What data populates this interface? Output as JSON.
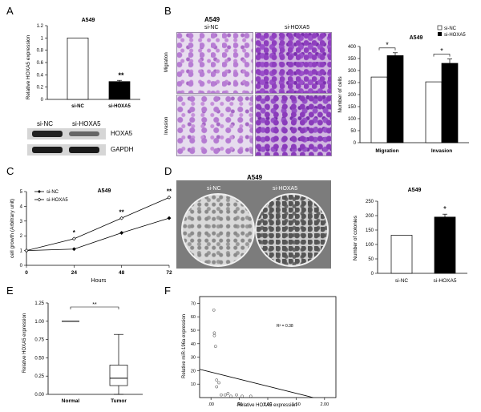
{
  "panels": {
    "A": {
      "letter": "A",
      "title": "A549",
      "ylabel": "Relative HOXA5 expression",
      "sig": "**",
      "western": {
        "lanes": [
          "si-NC",
          "si-HOXA5"
        ],
        "bands": [
          "HOXA5",
          "GAPDH"
        ]
      }
    },
    "B": {
      "letter": "B",
      "title": "A549",
      "columns": [
        "si-NC",
        "si-HOXA5"
      ],
      "rows": [
        "Migration",
        "Invasion"
      ],
      "chart_title": "A549",
      "ylabel": "Number of cells",
      "legend": [
        "si-NC",
        "si-HOXA5"
      ],
      "sig": [
        "*",
        "*"
      ]
    },
    "C": {
      "letter": "C",
      "title": "A549",
      "ylabel": "cell growth (Arbitrary unit)",
      "xlabel": "Hours",
      "legend": [
        "si-NC",
        "si-HOXA5"
      ],
      "sig": [
        "*",
        "**",
        "**"
      ]
    },
    "D": {
      "letter": "D",
      "title": "A549",
      "dishes": [
        "si-NC",
        "si-HOXA5"
      ],
      "chart_title": "A549",
      "ylabel": "Number of colonies",
      "sig": "*"
    },
    "E": {
      "letter": "E",
      "ylabel": "Relative HOXA5 expression",
      "sig": "**"
    },
    "F": {
      "letter": "F",
      "ylabel": "Relative miR-196a expression",
      "xlabel": "Relative HOXA5 expression",
      "r2": "R² = 0.38"
    }
  },
  "chart_data": [
    {
      "id": "A",
      "type": "bar",
      "categories": [
        "si-NC",
        "si-HOXA5"
      ],
      "values": [
        1.0,
        0.29
      ],
      "errors": [
        0,
        0.02
      ],
      "ylim": [
        0,
        1.2
      ],
      "yticks": [
        0,
        0.2,
        0.4,
        0.6,
        0.8,
        1.0,
        1.2
      ],
      "ytick_labels": [
        "0",
        "0.2",
        "0.4",
        "0.6",
        "0.8",
        "1",
        "1.2"
      ],
      "fills": [
        "#ffffff",
        "#000000"
      ]
    },
    {
      "id": "B",
      "type": "bar",
      "categories": [
        "Migration",
        "Invasion"
      ],
      "series": [
        {
          "name": "si-NC",
          "values": [
            273,
            253
          ],
          "errors": [
            0,
            0
          ],
          "fill": "#ffffff"
        },
        {
          "name": "si-HOXA5",
          "values": [
            362,
            330
          ],
          "errors": [
            12,
            18
          ],
          "fill": "#000000"
        }
      ],
      "ylim": [
        0,
        400
      ],
      "yticks": [
        0,
        50,
        100,
        150,
        200,
        250,
        300,
        350,
        400
      ],
      "legend_position": "top-right"
    },
    {
      "id": "C",
      "type": "line",
      "x": [
        0,
        24,
        48,
        72
      ],
      "xtick_labels": [
        "0",
        "24",
        "48",
        "72"
      ],
      "series": [
        {
          "name": "si-NC",
          "values": [
            1.0,
            1.1,
            2.2,
            3.2
          ],
          "errors": [
            0,
            0.1,
            0.05,
            0.08
          ]
        },
        {
          "name": "si-HOXA5",
          "values": [
            1.0,
            1.8,
            3.2,
            4.6
          ],
          "errors": [
            0,
            0.1,
            0.1,
            0.1
          ]
        }
      ],
      "ylim": [
        0,
        5
      ],
      "yticks": [
        0,
        1,
        2,
        3,
        4,
        5
      ],
      "legend_position": "top-left"
    },
    {
      "id": "D",
      "type": "bar",
      "categories": [
        "si-NC",
        "si-HOXA5"
      ],
      "values": [
        132,
        195
      ],
      "errors": [
        0,
        10
      ],
      "ylim": [
        0,
        250
      ],
      "yticks": [
        0,
        50,
        100,
        150,
        200,
        250
      ],
      "fills": [
        "#ffffff",
        "#000000"
      ]
    },
    {
      "id": "E",
      "type": "box",
      "categories": [
        "Normal",
        "Tumor"
      ],
      "boxes": [
        {
          "min": 1.0,
          "q1": 1.0,
          "median": 1.0,
          "q3": 1.0,
          "max": 1.0
        },
        {
          "min": 0.0,
          "q1": 0.12,
          "median": 0.22,
          "q3": 0.4,
          "max": 0.82
        }
      ],
      "ylim": [
        0,
        1.25
      ],
      "yticks": [
        0,
        0.25,
        0.5,
        0.75,
        1.0,
        1.25
      ],
      "ytick_labels": [
        "0.00",
        "0.25",
        "0.50",
        "0.75",
        "1.00",
        "1.25"
      ]
    },
    {
      "id": "F",
      "type": "scatter",
      "points": [
        [
          0.05,
          65
        ],
        [
          0.06,
          48
        ],
        [
          0.06,
          46
        ],
        [
          0.08,
          38
        ],
        [
          0.1,
          13
        ],
        [
          0.14,
          11
        ],
        [
          0.1,
          8
        ],
        [
          0.18,
          2
        ],
        [
          0.25,
          2
        ],
        [
          0.3,
          3
        ],
        [
          0.35,
          1
        ],
        [
          0.45,
          2
        ],
        [
          0.55,
          1
        ],
        [
          0.7,
          1
        ]
      ],
      "fit_line": [
        [
          -0.2,
          21
        ],
        [
          1.8,
          0
        ]
      ],
      "xlim": [
        -0.2,
        2.2
      ],
      "ylim": [
        0,
        75
      ],
      "xticks": [
        0,
        0.5,
        1.0,
        1.5,
        2.0
      ],
      "xtick_labels": [
        ".00",
        ".50",
        "1.00",
        "1.50",
        "2.00"
      ],
      "yticks": [
        10,
        20,
        30,
        40,
        50,
        60,
        70
      ]
    }
  ]
}
